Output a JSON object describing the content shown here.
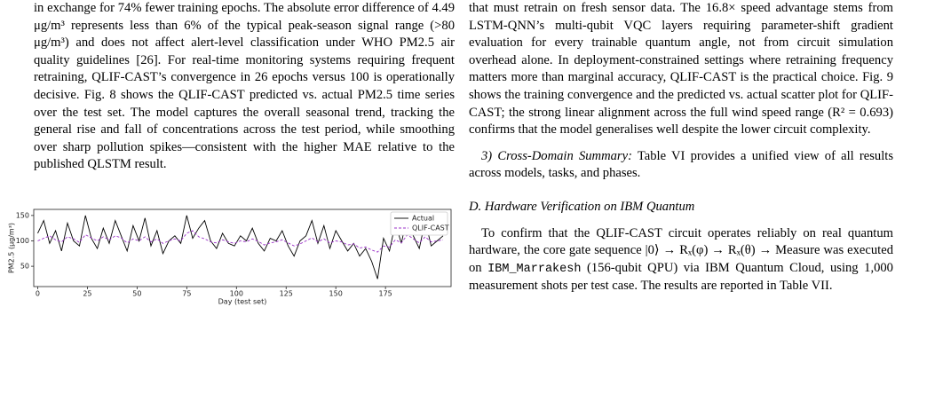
{
  "left_column": {
    "paragraph": "in exchange for 74% fewer training epochs. The absolute error difference of 4.49 μg/m³ represents less than 6% of the typical peak-season signal range (>80 μg/m³) and does not affect alert-level classification under WHO PM2.5 air quality guidelines [26]. For real-time monitoring systems requiring frequent retraining, QLIF-CAST’s convergence in 26 epochs versus 100 is operationally decisive. Fig. 8 shows the QLIF-CAST predicted vs. actual PM2.5 time series over the test set. The model captures the overall seasonal trend, tracking the general rise and fall of concentrations across the test period, while smoothing over sharp pollution spikes—consistent with the higher MAE relative to the published QLSTM result."
  },
  "chart_data": {
    "type": "line",
    "x_label": "Day (test set)",
    "y_label": "PM2.5 (μg/m³)",
    "xlim": [
      -2,
      208
    ],
    "ylim": [
      10,
      162
    ],
    "xticks": [
      0,
      25,
      50,
      75,
      100,
      125,
      150,
      175
    ],
    "yticks": [
      50,
      100,
      150
    ],
    "legend": "upper right",
    "x": [
      0,
      3,
      6,
      9,
      12,
      15,
      18,
      21,
      24,
      27,
      30,
      33,
      36,
      39,
      42,
      45,
      48,
      51,
      54,
      57,
      60,
      63,
      66,
      69,
      72,
      75,
      78,
      81,
      84,
      87,
      90,
      93,
      96,
      99,
      102,
      105,
      108,
      111,
      114,
      117,
      120,
      123,
      126,
      129,
      132,
      135,
      138,
      141,
      144,
      147,
      150,
      153,
      156,
      159,
      162,
      165,
      168,
      171,
      174,
      177,
      180,
      183,
      186,
      189,
      192,
      195,
      198,
      201,
      204
    ],
    "series": [
      {
        "name": "Actual",
        "color": "#000000",
        "style": "solid",
        "values": [
          115,
          140,
          95,
          120,
          80,
          135,
          100,
          90,
          150,
          105,
          85,
          125,
          95,
          140,
          110,
          80,
          130,
          100,
          145,
          90,
          120,
          75,
          100,
          110,
          95,
          150,
          105,
          125,
          140,
          100,
          85,
          115,
          95,
          90,
          110,
          100,
          125,
          95,
          80,
          105,
          100,
          120,
          90,
          70,
          100,
          110,
          140,
          95,
          130,
          85,
          120,
          100,
          80,
          95,
          70,
          85,
          60,
          25,
          105,
          80,
          135,
          95,
          150,
          110,
          85,
          140,
          90,
          100,
          110
        ]
      },
      {
        "name": "QLIF-CAST",
        "color": "#9b30c8",
        "style": "dashed",
        "values": [
          100,
          105,
          110,
          102,
          98,
          108,
          104,
          97,
          112,
          106,
          100,
          108,
          102,
          110,
          106,
          96,
          104,
          100,
          108,
          98,
          104,
          95,
          100,
          104,
          100,
          115,
          120,
          108,
          104,
          98,
          96,
          102,
          98,
          95,
          100,
          98,
          104,
          99,
          92,
          96,
          98,
          102,
          96,
          90,
          94,
          100,
          106,
          98,
          104,
          96,
          100,
          98,
          92,
          94,
          86,
          88,
          82,
          78,
          90,
          88,
          102,
          96,
          112,
          104,
          96,
          108,
          98,
          100,
          102
        ]
      }
    ]
  },
  "right_column": {
    "paragraph": "that must retrain on fresh sensor data. The 16.8× speed advantage stems from LSTM-QNN’s multi-qubit VQC layers requiring parameter-shift gradient evaluation for every trainable quantum angle, not from circuit simulation overhead alone. In deployment-constrained settings where retraining frequency matters more than marginal accuracy, QLIF-CAST is the practical choice. Fig. 9 shows the training convergence and the predicted vs. actual scatter plot for QLIF-CAST; the strong linear alignment across the full wind speed range (R² = 0.693) confirms that the model generalises well despite the lower circuit complexity.",
    "summary_label": "3) Cross-Domain Summary:",
    "summary_text": "Table VI provides a unified view of all results across models, tasks, and phases.",
    "section_heading": "D. Hardware Verification on IBM Quantum",
    "hardware_before": "To confirm that the QLIF-CAST circuit operates reliably on real quantum hardware, the core gate sequence |0⟩ → Rₓ(φ) → Rₓ(θ) → Measure was executed on",
    "hardware_code": "IBM_Marrakesh",
    "hardware_after": "(156-qubit QPU) via IBM Quantum Cloud, using 1,000 measurement shots per test case. The results are reported in Table VII."
  }
}
